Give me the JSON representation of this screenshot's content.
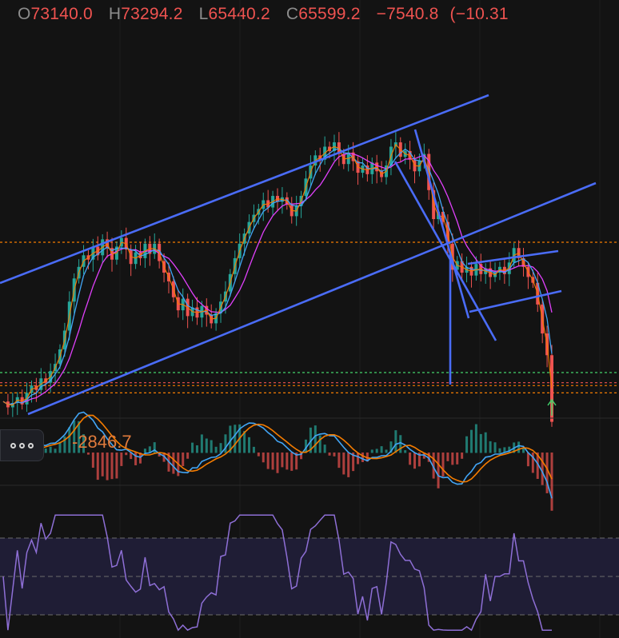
{
  "header": {
    "open_key": "O",
    "open": "73140.0",
    "high_key": "H",
    "high": "73294.2",
    "low_key": "L",
    "low": "65440.2",
    "close_key": "C",
    "close": "65599.2",
    "change": "−7540.8",
    "change_pct": "(−10.31",
    "value_color": "#ef5350"
  },
  "macd": {
    "value": "-2846.7",
    "value_color": "#e07b3c"
  },
  "icons": {
    "options": "more-horizontal-icon",
    "marker": "up-arrow-icon"
  },
  "colors": {
    "background": "#131313",
    "trendline": "#4a6cf7",
    "candle_up": "#26a69a",
    "candle_down": "#ef5350",
    "ma_fast": "#f57c00",
    "ma_mid": "#42a5f5",
    "ma_slow": "#e040fb",
    "rsi_line": "#8e6fd6",
    "rsi_band": "#1f1d35",
    "level_orange": "#f57c00",
    "level_green": "#43d36b",
    "level_red": "#ef5350"
  },
  "chart_data": {
    "type": "candlestick",
    "close_series": [
      67000,
      66600,
      66900,
      67300,
      66800,
      67600,
      68100,
      67800,
      68600,
      68300,
      69100,
      69600,
      70600,
      71900,
      73900,
      75500,
      76300,
      77100,
      76800,
      77700,
      77100,
      78200,
      77600,
      76800,
      77700,
      78300,
      77500,
      76500,
      77300,
      76900,
      77900,
      77200,
      77900,
      76700,
      75900,
      75300,
      74200,
      73300,
      74100,
      72900,
      73500,
      72800,
      73600,
      73000,
      72400,
      73100,
      73900,
      74600,
      75800,
      76900,
      77900,
      78600,
      79400,
      79900,
      80300,
      80900,
      80400,
      81200,
      80800,
      81100,
      80600,
      79800,
      80500,
      81200,
      82400,
      83300,
      84000,
      83700,
      84600,
      84300,
      84900,
      84100,
      83400,
      84200,
      83600,
      82800,
      83300,
      82700,
      83500,
      82900,
      82500,
      83300,
      84600,
      84900,
      83900,
      84300,
      83700,
      82900,
      83600,
      84100,
      81600,
      79600,
      80100,
      79400,
      77900,
      76100,
      76700,
      75900,
      76300,
      75700,
      76500,
      75800,
      76200,
      75600,
      75900,
      76300,
      75800,
      76600,
      77600,
      76900,
      76300,
      75600,
      75200,
      73700,
      71700,
      70200,
      65600
    ],
    "levels": [
      {
        "value": 78000,
        "color": "orange"
      },
      {
        "value": 69000,
        "color": "green"
      },
      {
        "value": 68300,
        "color": "red"
      },
      {
        "value": 68100,
        "color": "orange"
      },
      {
        "value": 67600,
        "color": "orange"
      }
    ],
    "macd_label": "-2846.7",
    "rsi_bands": [
      70,
      50,
      30
    ]
  }
}
